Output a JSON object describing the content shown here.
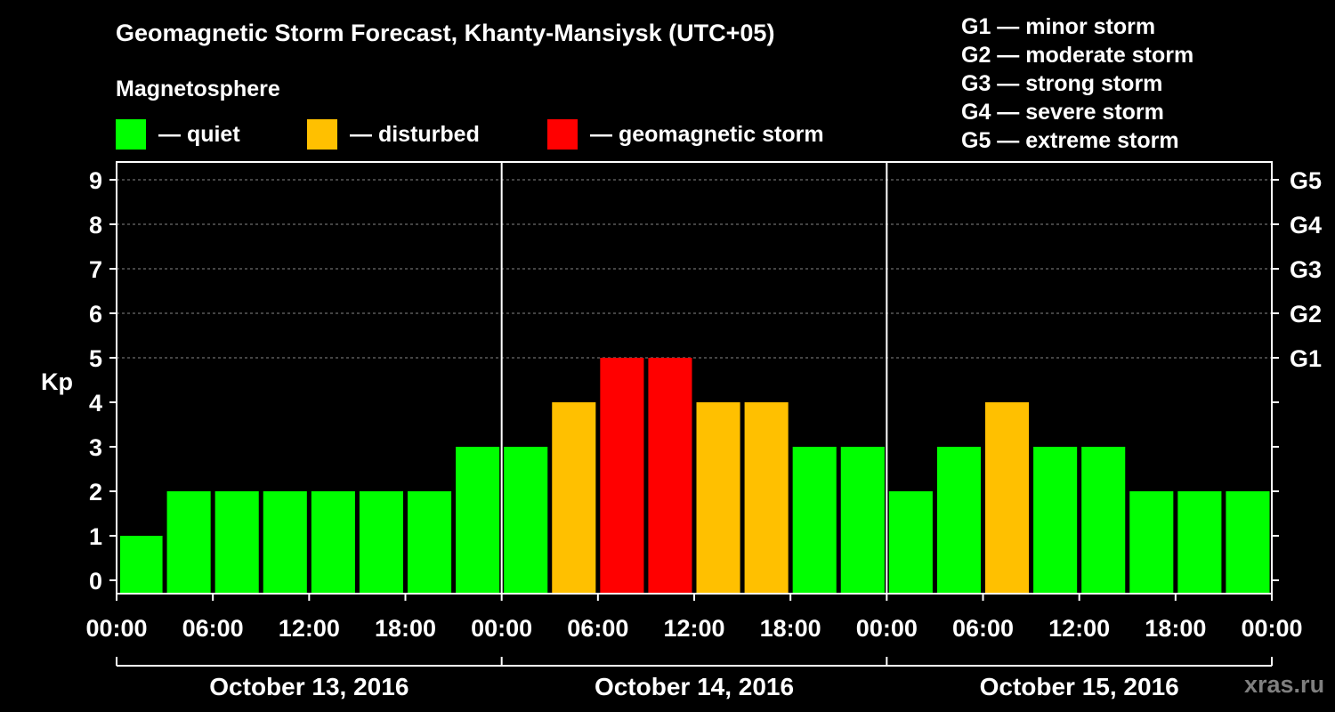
{
  "title": "Geomagnetic Storm Forecast, Khanty-Mansiysk (UTC+05)",
  "legend": {
    "heading": "Magnetosphere",
    "items": [
      {
        "label": "— quiet",
        "color": "#00ff00"
      },
      {
        "label": "— disturbed",
        "color": "#ffc000"
      },
      {
        "label": "— geomagnetic storm",
        "color": "#ff0000"
      }
    ]
  },
  "storm_levels": [
    "G1 — minor storm",
    "G2 — moderate storm",
    "G3 — strong storm",
    "G4 — severe storm",
    "G5 — extreme storm"
  ],
  "brand": "xras.ru",
  "chart_data": {
    "type": "bar",
    "ylabel": "Kp",
    "ylim": [
      0,
      9
    ],
    "yticks": [
      0,
      1,
      2,
      3,
      4,
      5,
      6,
      7,
      8,
      9
    ],
    "right_ticks": [
      {
        "value": 5,
        "label": "G1"
      },
      {
        "value": 6,
        "label": "G2"
      },
      {
        "value": 7,
        "label": "G3"
      },
      {
        "value": 8,
        "label": "G4"
      },
      {
        "value": 9,
        "label": "G5"
      }
    ],
    "grid": "dashed horizontal at Kp 5–9",
    "x_tick_labels": [
      "00:00",
      "06:00",
      "12:00",
      "18:00",
      "00:00",
      "06:00",
      "12:00",
      "18:00",
      "00:00",
      "06:00",
      "12:00",
      "18:00",
      "00:00"
    ],
    "days": [
      "October 13, 2016",
      "October 14, 2016",
      "October 15, 2016"
    ],
    "bar_interval_hours": 3,
    "categories": [
      "Oct 13 00:00",
      "Oct 13 03:00",
      "Oct 13 06:00",
      "Oct 13 09:00",
      "Oct 13 12:00",
      "Oct 13 15:00",
      "Oct 13 18:00",
      "Oct 13 21:00",
      "Oct 14 00:00",
      "Oct 14 03:00",
      "Oct 14 06:00",
      "Oct 14 09:00",
      "Oct 14 12:00",
      "Oct 14 15:00",
      "Oct 14 18:00",
      "Oct 14 21:00",
      "Oct 15 00:00",
      "Oct 15 03:00",
      "Oct 15 06:00",
      "Oct 15 09:00",
      "Oct 15 12:00",
      "Oct 15 15:00",
      "Oct 15 18:00",
      "Oct 15 21:00"
    ],
    "values": [
      1,
      2,
      2,
      2,
      2,
      2,
      2,
      3,
      3,
      4,
      5,
      5,
      4,
      4,
      3,
      3,
      2,
      3,
      4,
      3,
      3,
      2,
      2,
      2
    ],
    "color_rule": {
      "quiet": "Kp < 4",
      "disturbed": "Kp = 4",
      "geomagnetic storm": "Kp >= 5"
    }
  }
}
